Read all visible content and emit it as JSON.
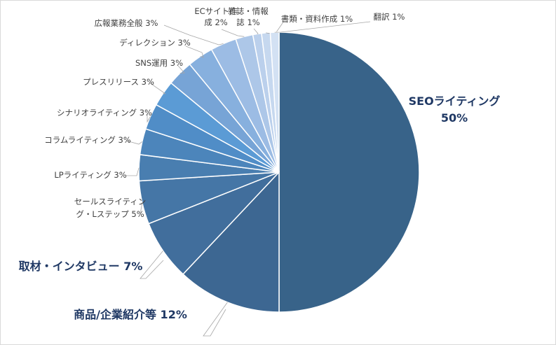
{
  "chart_data": {
    "type": "pie",
    "title": "",
    "unit": "%",
    "slices": [
      {
        "name": "SEOライティング",
        "value": 50,
        "label_lines": [
          "SEOライティング",
          "50%"
        ],
        "color": "#386389"
      },
      {
        "name": "商品/企業紹介等",
        "value": 12,
        "label_lines": [
          "商品/企業紹介等 12%"
        ],
        "color": "#3d6792"
      },
      {
        "name": "取材・インタビュー",
        "value": 7,
        "label_lines": [
          "取材・インタビュー 7%"
        ],
        "color": "#416e9c"
      },
      {
        "name": "セールスライティング・Lステップ",
        "value": 5,
        "label_lines": [
          "セールスライティン",
          "グ・Lステップ 5%"
        ],
        "color": "#4576a6"
      },
      {
        "name": "LPライティング",
        "value": 3,
        "label_lines": [
          "LPライティング 3%"
        ],
        "color": "#497eb0"
      },
      {
        "name": "コラムライティング",
        "value": 3,
        "label_lines": [
          "コラムライティング 3%"
        ],
        "color": "#4c85bb"
      },
      {
        "name": "シナリオライティング",
        "value": 3,
        "label_lines": [
          "シナリオライティング 3%"
        ],
        "color": "#508dc7"
      },
      {
        "name": "プレスリリース",
        "value": 3,
        "label_lines": [
          "プレスリリース 3%"
        ],
        "color": "#5b9bd5"
      },
      {
        "name": "SNS運用",
        "value": 3,
        "label_lines": [
          "SNS運用 3%"
        ],
        "color": "#77a4d6"
      },
      {
        "name": "ディレクション",
        "value": 3,
        "label_lines": [
          "ディレクション 3%"
        ],
        "color": "#87b0de"
      },
      {
        "name": "広報業務全般",
        "value": 3,
        "label_lines": [
          "広報業務全般 3%"
        ],
        "color": "#9cbce4"
      },
      {
        "name": "ECサイト作成",
        "value": 2,
        "label_lines": [
          "ECサイト作",
          "成 2%"
        ],
        "color": "#adc7e8"
      },
      {
        "name": "雑誌・情報誌",
        "value": 1,
        "label_lines": [
          "雑誌・情報",
          "誌 1%"
        ],
        "color": "#bbd0ec"
      },
      {
        "name": "書類・資料作成",
        "value": 1,
        "label_lines": [
          "書類・資料作成 1%"
        ],
        "color": "#c6d8ef"
      },
      {
        "name": "翻訳",
        "value": 1,
        "label_lines": [
          "翻訳 1%"
        ],
        "color": "#d3e1f3"
      }
    ]
  }
}
